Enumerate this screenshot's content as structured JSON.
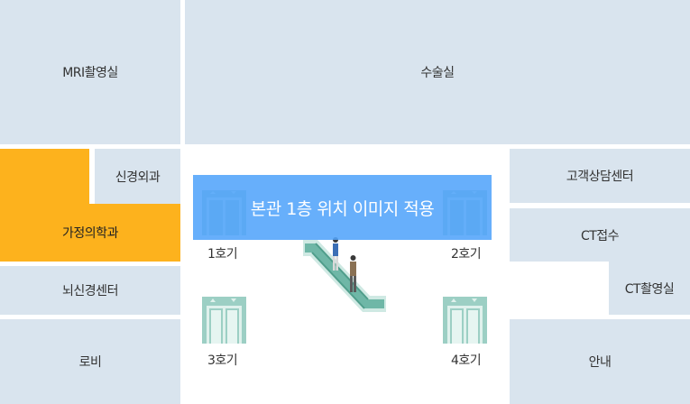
{
  "rooms": {
    "mri": "MRI촬영실",
    "surgery": "수술실",
    "neurosurgery": "신경외과",
    "family_medicine": "가정의학과",
    "stroke_center": "뇌신경센터",
    "lobby": "로비",
    "customer_counseling": "고객상담센터",
    "ct_reception": "CT접수",
    "ct_room": "CT촬영실",
    "information": "안내"
  },
  "elevators": {
    "e1": "1호기",
    "e2": "2호기",
    "e3": "3호기",
    "e4": "4호기"
  },
  "banner": "본관 1층 위치  이미지 적용",
  "colors": {
    "room": "#d9e4ee",
    "highlight": "#fdb21d",
    "banner": "#52a4fa",
    "elevator": "#9ccfc4",
    "elevator_door": "#dff1ec"
  },
  "icons": [
    "elevator-icon",
    "escalator-icon",
    "person-icon"
  ]
}
